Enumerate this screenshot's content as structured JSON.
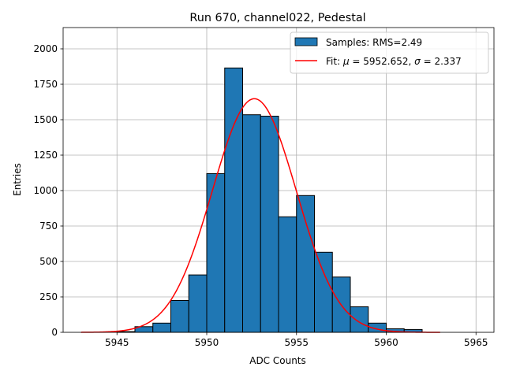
{
  "chart_data": {
    "type": "bar",
    "title": "Run 670, channel022, Pedestal",
    "xlabel": "ADC Counts",
    "ylabel": "Entries",
    "xlim": [
      5942,
      5966
    ],
    "ylim": [
      0,
      2150
    ],
    "xticks": [
      5945,
      5950,
      5955,
      5960,
      5965
    ],
    "yticks": [
      0,
      250,
      500,
      750,
      1000,
      1250,
      1500,
      1750,
      2000
    ],
    "grid": true,
    "legend_position": "top-right",
    "bar_color": "#1f77b4",
    "fit_color": "#ff0000",
    "bins": [
      {
        "left": 5945,
        "right": 5946,
        "value": 5
      },
      {
        "left": 5946,
        "right": 5947,
        "value": 40
      },
      {
        "left": 5947,
        "right": 5948,
        "value": 65
      },
      {
        "left": 5948,
        "right": 5949,
        "value": 225
      },
      {
        "left": 5949,
        "right": 5950,
        "value": 405
      },
      {
        "left": 5950,
        "right": 5951,
        "value": 1120
      },
      {
        "left": 5951,
        "right": 5952,
        "value": 1865
      },
      {
        "left": 5952,
        "right": 5953,
        "value": 1535
      },
      {
        "left": 5953,
        "right": 5954,
        "value": 1525
      },
      {
        "left": 5954,
        "right": 5955,
        "value": 815
      },
      {
        "left": 5955,
        "right": 5956,
        "value": 965
      },
      {
        "left": 5956,
        "right": 5957,
        "value": 565
      },
      {
        "left": 5957,
        "right": 5958,
        "value": 390
      },
      {
        "left": 5958,
        "right": 5959,
        "value": 180
      },
      {
        "left": 5959,
        "right": 5960,
        "value": 65
      },
      {
        "left": 5960,
        "right": 5961,
        "value": 25
      },
      {
        "left": 5961,
        "right": 5962,
        "value": 20
      }
    ],
    "fit": {
      "mu": 5952.652,
      "sigma": 2.337,
      "amplitude": 1648,
      "x_range": [
        5943,
        5963
      ]
    },
    "legend": {
      "samples": "Samples: RMS=2.49",
      "fit_prefix": "Fit: ",
      "fit_mu_symbol": "μ",
      "fit_mu_value": " = 5952.652, ",
      "fit_sigma_symbol": "σ",
      "fit_sigma_value": " = 2.337"
    }
  }
}
